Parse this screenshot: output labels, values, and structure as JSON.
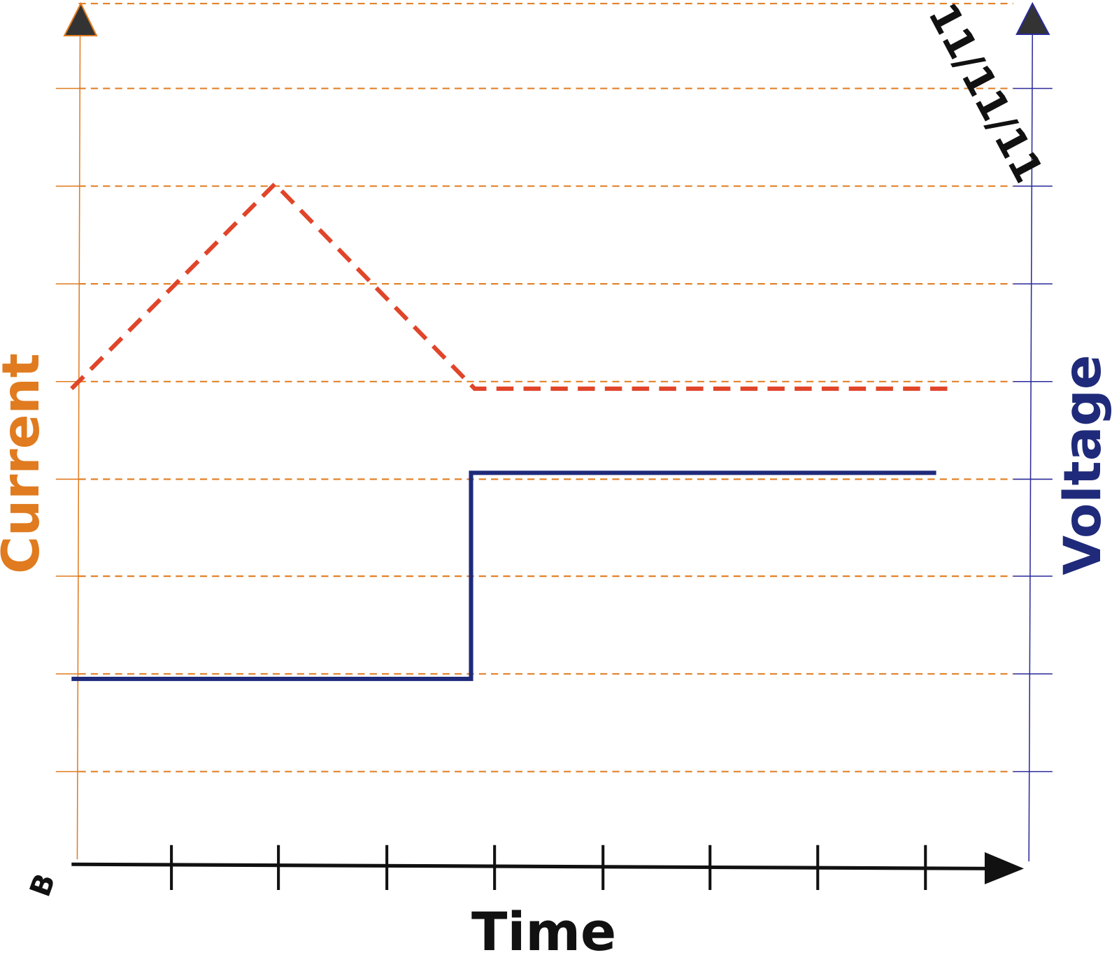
{
  "labels": {
    "current": "Current",
    "voltage": "Voltage",
    "time": "Time",
    "date": "11/11/11",
    "signature": "B"
  }
}
